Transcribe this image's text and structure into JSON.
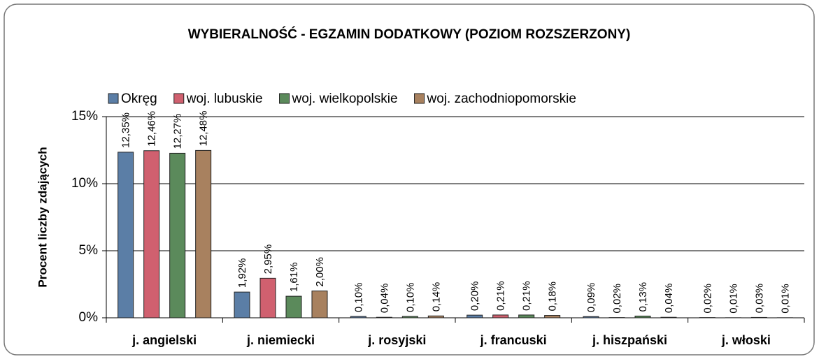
{
  "chart_data": {
    "type": "bar",
    "title": "WYBIERALNOŚĆ - EGZAMIN DODATKOWY (POZIOM ROZSZERZONY)",
    "y_label": "Procent liczby zdających",
    "categories": [
      "j. angielski",
      "j. niemiecki",
      "j. rosyjski",
      "j. francuski",
      "j. hiszpański",
      "j. włoski"
    ],
    "series": [
      {
        "name": "Okręg",
        "color": "#5b7ea6",
        "values": [
          12.35,
          1.92,
          0.1,
          0.2,
          0.09,
          0.02
        ],
        "value_labels": [
          "12,35%",
          "1,92%",
          "0,10%",
          "0,20%",
          "0,09%",
          "0,02%"
        ]
      },
      {
        "name": "woj. lubuskie",
        "color": "#d0606f",
        "values": [
          12.46,
          2.95,
          0.04,
          0.21,
          0.02,
          0.01
        ],
        "value_labels": [
          "12,46%",
          "2,95%",
          "0,04%",
          "0,21%",
          "0,02%",
          "0,01%"
        ]
      },
      {
        "name": "woj. wielkopolskie",
        "color": "#5b8a5b",
        "values": [
          12.27,
          1.61,
          0.1,
          0.21,
          0.13,
          0.03
        ],
        "value_labels": [
          "12,27%",
          "1,61%",
          "0,10%",
          "0,21%",
          "0,13%",
          "0,03%"
        ]
      },
      {
        "name": "woj. zachodniopomorskie",
        "color": "#a8815f",
        "values": [
          12.48,
          2.0,
          0.14,
          0.18,
          0.04,
          0.01
        ],
        "value_labels": [
          "12,48%",
          "2,00%",
          "0,14%",
          "0,18%",
          "0,04%",
          "0,01%"
        ]
      }
    ],
    "ylim": [
      0,
      15
    ],
    "yticks": [
      {
        "value": 0,
        "label": "0%"
      },
      {
        "value": 5,
        "label": "5%"
      },
      {
        "value": 10,
        "label": "10%"
      },
      {
        "value": 15,
        "label": "15%"
      }
    ],
    "grid": true,
    "legend": "top"
  }
}
